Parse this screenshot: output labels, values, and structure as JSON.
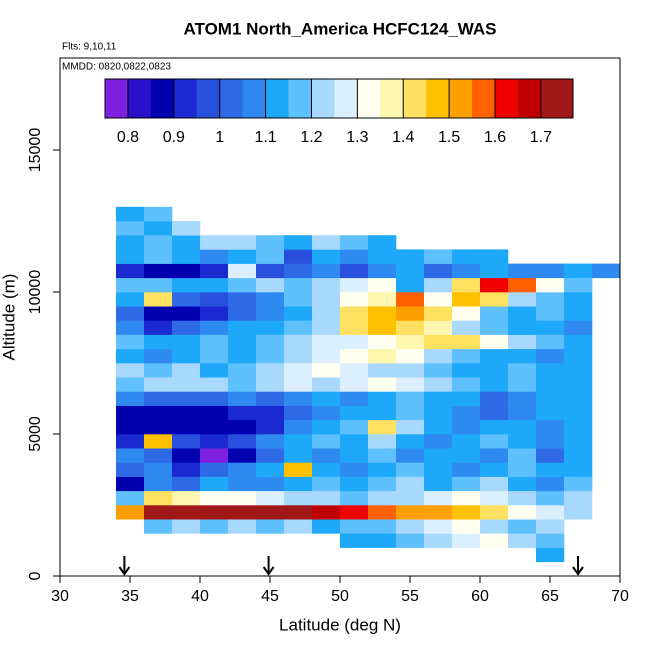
{
  "chart_data": {
    "type": "heatmap",
    "title": "ATOM1 North_America HCFC124_WAS",
    "annotations": [
      "Flts: 9,10,11",
      "MMDD: 0820,0822,0823"
    ],
    "xlabel": "Latitude (deg N)",
    "ylabel": "Altitude (m)",
    "xlim": [
      30,
      70
    ],
    "xticks": [
      30,
      35,
      40,
      45,
      50,
      55,
      60,
      65,
      70
    ],
    "ylim": [
      0,
      18240
    ],
    "yticks": [
      0,
      5000,
      10000,
      15000
    ],
    "x_edges": [
      34,
      36,
      38,
      40,
      42,
      44,
      46,
      48,
      50,
      52,
      54,
      56,
      58,
      60,
      62,
      64,
      66,
      68,
      70
    ],
    "y_edges": [
      500,
      1000,
      1500,
      2000,
      2500,
      3000,
      3500,
      4000,
      4500,
      5000,
      5500,
      6000,
      6500,
      7000,
      7500,
      8000,
      8500,
      9000,
      9500,
      10000,
      10500,
      11000,
      11500,
      12000,
      12500,
      13000
    ],
    "values": [
      [
        null,
        null,
        null,
        null,
        null,
        null,
        null,
        null,
        null,
        null,
        null,
        null,
        null,
        null,
        null,
        1.1,
        null,
        null
      ],
      [
        null,
        null,
        null,
        null,
        null,
        null,
        null,
        null,
        1.1,
        1.1,
        1.15,
        1.2,
        1.25,
        1.3,
        1.2,
        1.15,
        null,
        null
      ],
      [
        null,
        1.15,
        1.2,
        1.15,
        1.2,
        1.15,
        1.2,
        1.1,
        1.15,
        1.15,
        1.2,
        1.25,
        1.3,
        1.2,
        1.15,
        1.2,
        null,
        null
      ],
      [
        1.5,
        1.75,
        1.75,
        1.75,
        1.75,
        1.75,
        1.7,
        1.65,
        1.6,
        1.55,
        1.5,
        1.5,
        1.45,
        1.4,
        1.3,
        1.25,
        1.2,
        null
      ],
      [
        1.15,
        1.4,
        1.35,
        1.3,
        1.3,
        1.25,
        1.2,
        1.2,
        1.15,
        1.2,
        1.2,
        1.25,
        1.3,
        1.25,
        1.2,
        1.15,
        1.2,
        null
      ],
      [
        0.85,
        1.05,
        1.0,
        1.1,
        1.05,
        1.05,
        1.1,
        1.15,
        1.1,
        1.15,
        1.2,
        1.1,
        1.15,
        1.2,
        1.1,
        1.05,
        1.15,
        null
      ],
      [
        1.0,
        1.05,
        0.9,
        1.0,
        1.05,
        1.1,
        1.45,
        1.1,
        1.05,
        1.1,
        1.15,
        1.1,
        1.05,
        1.1,
        1.15,
        1.1,
        1.1,
        null
      ],
      [
        1.05,
        1.0,
        0.85,
        0.78,
        0.85,
        1.0,
        1.1,
        1.05,
        1.1,
        1.15,
        1.05,
        1.1,
        1.1,
        1.05,
        1.15,
        1.0,
        1.1,
        null
      ],
      [
        0.9,
        1.45,
        0.95,
        0.9,
        0.95,
        1.05,
        1.1,
        1.15,
        1.1,
        1.2,
        1.1,
        1.05,
        1.1,
        1.15,
        1.1,
        1.05,
        1.1,
        null
      ],
      [
        0.85,
        0.85,
        0.85,
        0.85,
        0.85,
        0.9,
        1.05,
        1.1,
        1.15,
        1.4,
        1.2,
        1.1,
        1.05,
        1.1,
        1.1,
        1.05,
        1.1,
        null
      ],
      [
        0.85,
        0.85,
        0.85,
        0.85,
        0.9,
        0.9,
        1.0,
        1.05,
        1.1,
        1.1,
        1.15,
        1.1,
        1.05,
        1.0,
        1.05,
        1.1,
        1.1,
        null
      ],
      [
        1.05,
        1.0,
        1.0,
        1.0,
        1.05,
        1.0,
        1.05,
        1.1,
        1.05,
        1.1,
        1.15,
        1.1,
        1.1,
        1.0,
        1.05,
        1.1,
        1.1,
        null
      ],
      [
        1.15,
        1.2,
        1.2,
        1.2,
        1.15,
        1.2,
        1.25,
        1.2,
        1.25,
        1.3,
        1.25,
        1.2,
        1.15,
        1.1,
        1.15,
        1.1,
        1.1,
        null
      ],
      [
        1.2,
        1.15,
        1.2,
        1.1,
        1.15,
        1.2,
        1.25,
        1.3,
        1.25,
        1.2,
        1.2,
        1.15,
        1.1,
        1.1,
        1.15,
        1.1,
        1.1,
        null
      ],
      [
        1.1,
        1.05,
        1.1,
        1.15,
        1.1,
        1.15,
        1.2,
        1.25,
        1.3,
        1.35,
        1.3,
        1.2,
        1.15,
        1.1,
        1.1,
        1.05,
        1.1,
        null
      ],
      [
        1.15,
        1.1,
        1.1,
        1.15,
        1.1,
        1.15,
        1.2,
        1.25,
        1.25,
        1.3,
        1.35,
        1.4,
        1.4,
        1.3,
        1.2,
        1.15,
        1.1,
        null
      ],
      [
        1.05,
        0.9,
        1.0,
        1.05,
        1.1,
        1.1,
        1.15,
        1.2,
        1.4,
        1.45,
        1.4,
        1.35,
        1.2,
        1.15,
        1.1,
        1.1,
        1.05,
        null
      ],
      [
        1.0,
        0.85,
        0.85,
        0.9,
        1.0,
        1.05,
        1.1,
        1.2,
        1.4,
        1.45,
        1.5,
        1.4,
        1.3,
        1.15,
        1.1,
        1.15,
        1.1,
        null
      ],
      [
        1.1,
        1.4,
        1.0,
        0.95,
        1.0,
        1.05,
        1.15,
        1.2,
        1.3,
        1.35,
        1.55,
        1.3,
        1.45,
        1.4,
        1.2,
        1.15,
        1.1,
        null
      ],
      [
        1.15,
        1.15,
        1.1,
        1.1,
        1.15,
        1.2,
        1.15,
        1.2,
        1.25,
        1.3,
        1.1,
        1.2,
        1.4,
        1.6,
        1.55,
        1.3,
        1.15,
        null
      ],
      [
        0.9,
        0.85,
        0.85,
        0.9,
        1.25,
        0.95,
        1.0,
        1.05,
        0.95,
        1.05,
        1.1,
        1.0,
        1.05,
        1.1,
        1.05,
        1.05,
        1.1,
        1.05
      ],
      [
        1.1,
        1.15,
        1.1,
        1.05,
        1.1,
        1.15,
        0.95,
        1.1,
        1.05,
        1.1,
        1.1,
        1.15,
        1.1,
        1.1,
        null,
        null,
        null,
        null
      ],
      [
        1.1,
        1.15,
        1.1,
        1.2,
        1.2,
        1.15,
        1.1,
        1.2,
        1.15,
        1.1,
        null,
        null,
        null,
        null,
        null,
        null,
        null,
        null
      ],
      [
        1.15,
        1.1,
        1.2,
        null,
        null,
        null,
        null,
        null,
        null,
        null,
        null,
        null,
        null,
        null,
        null,
        null,
        null,
        null
      ],
      [
        1.1,
        1.15,
        null,
        null,
        null,
        null,
        null,
        null,
        null,
        null,
        null,
        null,
        null,
        null,
        null,
        null,
        null,
        null
      ]
    ],
    "colorbar": {
      "lim": [
        0.75,
        1.77
      ],
      "ticks": [
        0.8,
        0.9,
        1.0,
        1.1,
        1.2,
        1.3,
        1.4,
        1.5,
        1.6,
        1.7
      ],
      "bins": [
        0.75,
        0.8,
        0.85,
        0.9,
        0.95,
        1.0,
        1.05,
        1.1,
        1.15,
        1.2,
        1.25,
        1.3,
        1.35,
        1.4,
        1.45,
        1.5,
        1.55,
        1.6,
        1.65,
        1.7,
        1.77
      ],
      "colors": [
        "#7f1fe0",
        "#2a10c8",
        "#0000b0",
        "#1a2ad0",
        "#2850dc",
        "#2e6ae6",
        "#2e8af0",
        "#1ea8fa",
        "#5ec0fc",
        "#a8d8fc",
        "#dceffe",
        "#fffff0",
        "#fff6b0",
        "#ffe060",
        "#ffc000",
        "#ffa000",
        "#ff6000",
        "#ee0000",
        "#c00000",
        "#a01818"
      ]
    },
    "arrows": [
      34.6,
      44.9,
      67
    ]
  }
}
